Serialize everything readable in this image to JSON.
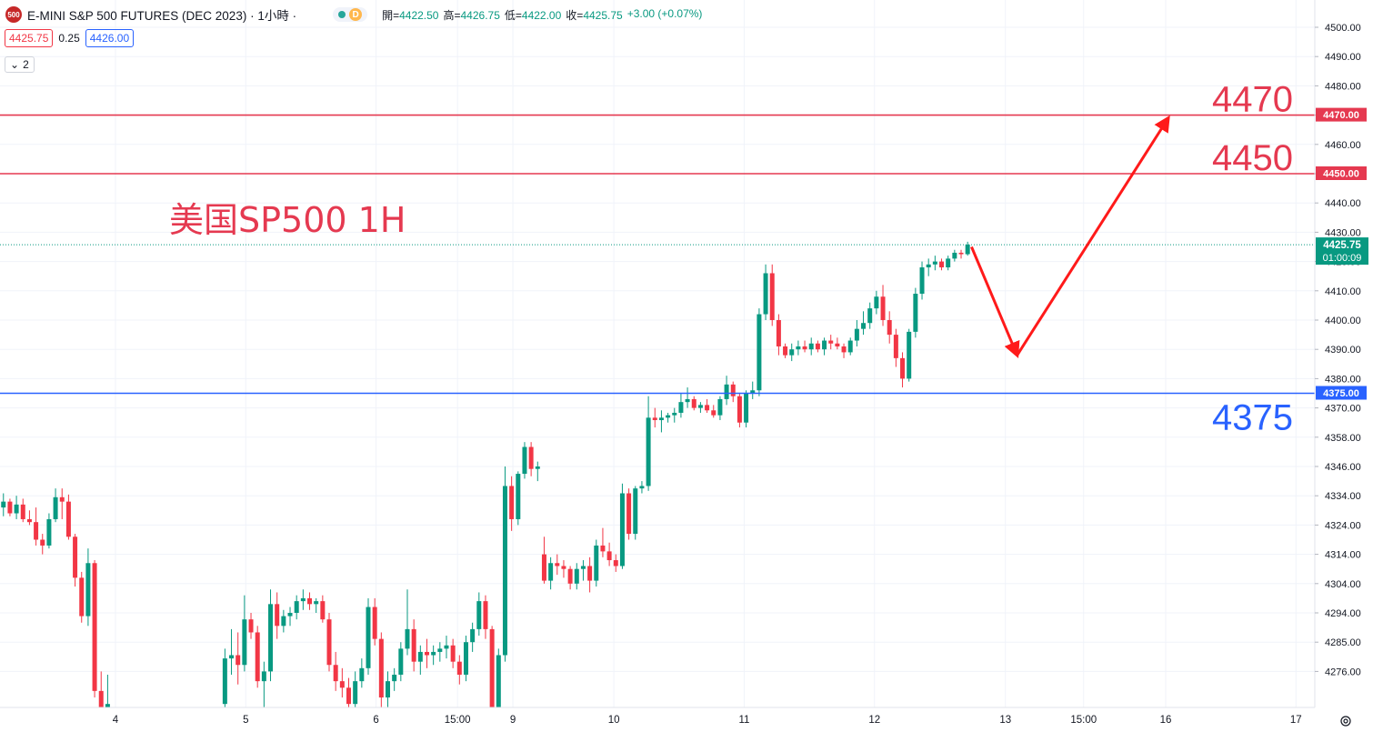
{
  "header": {
    "symbol_badge": "500",
    "title": "E-MINI S&P 500 FUTURES (DEC 2023) · 1小時 ·",
    "status_badge": "D",
    "ohlc": [
      {
        "k": "開=",
        "v": "4422.50"
      },
      {
        "k": "高=",
        "v": "4426.75"
      },
      {
        "k": "低=",
        "v": "4422.00"
      },
      {
        "k": "收=",
        "v": "4425.75"
      },
      {
        "k": "",
        "v": "+3.00 (+0.07%)"
      }
    ]
  },
  "bid_ask": {
    "bid": "4425.75",
    "spread": "0.25",
    "ask": "4426.00"
  },
  "indicators_toggle": {
    "count": "2",
    "icon": "chevron-down-icon"
  },
  "colors": {
    "up": "#089981",
    "down": "#f23645",
    "resistance": "#e53950",
    "support": "#2962ff",
    "arrow": "#ff1a1a"
  },
  "chart_data": {
    "type": "candlestick",
    "title": "美国SP500 1H",
    "y_axis": {
      "ticks": [
        "4500.00",
        "4490.00",
        "4480.00",
        "4470.00",
        "4460.00",
        "4450.00",
        "4440.00",
        "4430.00",
        "4420.00",
        "4410.00",
        "4400.00",
        "4390.00",
        "4380.00",
        "4370.00",
        "4358.00",
        "4346.00",
        "4334.00",
        "4324.00",
        "4314.00",
        "4304.00",
        "4294.00",
        "4285.00",
        "4276.00"
      ]
    },
    "x_axis": {
      "ticks": [
        {
          "label": "4",
          "x": 4
        },
        {
          "label": "5",
          "x": 5
        },
        {
          "label": "6",
          "x": 6
        },
        {
          "label": "15:00",
          "x": 6.625
        },
        {
          "label": "9",
          "x": 7.05
        },
        {
          "label": "10",
          "x": 7.825
        },
        {
          "label": "11",
          "x": 8.825
        },
        {
          "label": "12",
          "x": 9.825
        },
        {
          "label": "13",
          "x": 10.83
        },
        {
          "label": "15:00",
          "x": 11.43
        },
        {
          "label": "16",
          "x": 12.06
        },
        {
          "label": "17",
          "x": 13.06
        }
      ]
    },
    "levels": [
      {
        "value": 4470,
        "label": "4470",
        "tag": "4470.00",
        "color": "#e53950"
      },
      {
        "value": 4450,
        "label": "4450",
        "tag": "4450.00",
        "color": "#e53950"
      },
      {
        "value": 4375,
        "label": "4375",
        "tag": "4375.00",
        "color": "#2962ff"
      }
    ],
    "last_price": {
      "value": 4425.75,
      "tag": "4425.75",
      "countdown": "01:00:09"
    },
    "arrows": [
      {
        "from": [
          10.57,
          4425
        ],
        "to": [
          10.92,
          4388
        ]
      },
      {
        "from": [
          10.92,
          4388
        ],
        "to": [
          12.08,
          4469
        ]
      }
    ],
    "ohlc_series": [
      [
        3.09,
        4314.0,
        4333.5,
        4299.0,
        4331.5
      ],
      [
        3.14,
        4330.0,
        4335.0,
        4327.0,
        4332.0
      ],
      [
        3.19,
        4332.0,
        4333.0,
        4327.0,
        4328.0
      ],
      [
        3.24,
        4328.0,
        4334.0,
        4326.0,
        4331.0
      ],
      [
        3.29,
        4331.0,
        4333.0,
        4325.0,
        4326.0
      ],
      [
        3.34,
        4326.0,
        4329.0,
        4324.0,
        4325.0
      ],
      [
        3.39,
        4325.0,
        4330.0,
        4317.0,
        4319.0
      ],
      [
        3.44,
        4319.0,
        4321.0,
        4314.0,
        4317.0
      ],
      [
        3.49,
        4317.0,
        4328.0,
        4316.0,
        4326.0
      ],
      [
        3.54,
        4326.0,
        4337.0,
        4325.0,
        4333.5
      ],
      [
        3.59,
        4333.5,
        4337.0,
        4326.0,
        4332.0
      ],
      [
        3.64,
        4332.0,
        4334.5,
        4319.0,
        4320.0
      ],
      [
        3.69,
        4320.0,
        4321.0,
        4303.0,
        4306.0
      ],
      [
        3.74,
        4306.0,
        4308.0,
        4291.0,
        4293.0
      ],
      [
        3.79,
        4293.0,
        4316.0,
        4290.0,
        4311.0
      ],
      [
        3.84,
        4311.0,
        4312.0,
        4268.0,
        4270.0
      ],
      [
        3.89,
        4270.0,
        4276.0,
        4260.0,
        4262.0
      ],
      [
        3.94,
        4262.0,
        4275.0,
        4258.0,
        4266.0
      ],
      [
        4.84,
        4266.0,
        4283.0,
        4262.0,
        4280.0
      ],
      [
        4.89,
        4280.0,
        4289.0,
        4275.0,
        4281.0
      ],
      [
        4.94,
        4281.0,
        4288.0,
        4272.0,
        4278.0
      ],
      [
        4.99,
        4278.0,
        4300.0,
        4276.0,
        4292.0
      ],
      [
        5.04,
        4292.0,
        4294.0,
        4286.0,
        4288.0
      ],
      [
        5.09,
        4288.0,
        4290.0,
        4271.0,
        4273.0
      ],
      [
        5.14,
        4273.0,
        4279.0,
        4262.0,
        4276.0
      ],
      [
        5.19,
        4276.0,
        4302.0,
        4273.0,
        4297.0
      ],
      [
        5.24,
        4297.0,
        4301.0,
        4286.0,
        4290.0
      ],
      [
        5.29,
        4290.0,
        4295.0,
        4288.0,
        4293.0
      ],
      [
        5.34,
        4293.0,
        4296.0,
        4290.0,
        4294.0
      ],
      [
        5.39,
        4294.0,
        4300.0,
        4292.0,
        4298.0
      ],
      [
        5.44,
        4298.0,
        4302.0,
        4295.0,
        4299.0
      ],
      [
        5.49,
        4299.0,
        4301.0,
        4295.0,
        4297.0
      ],
      [
        5.54,
        4297.0,
        4299.0,
        4294.0,
        4298.0
      ],
      [
        5.59,
        4298.0,
        4300.0,
        4291.0,
        4292.0
      ],
      [
        5.64,
        4292.0,
        4294.0,
        4276.0,
        4278.0
      ],
      [
        5.69,
        4278.0,
        4282.0,
        4270.0,
        4273.0
      ],
      [
        5.74,
        4273.0,
        4277.0,
        4268.0,
        4271.0
      ],
      [
        5.79,
        4271.0,
        4274.0,
        4263.0,
        4266.0
      ],
      [
        5.84,
        4266.0,
        4276.0,
        4262.0,
        4273.0
      ],
      [
        5.89,
        4273.0,
        4280.0,
        4271.0,
        4277.0
      ],
      [
        5.94,
        4277.0,
        4299.0,
        4275.0,
        4296.0
      ],
      [
        5.99,
        4296.0,
        4299.0,
        4284.0,
        4286.0
      ],
      [
        6.04,
        4286.0,
        4288.0,
        4265.0,
        4268.0
      ],
      [
        6.09,
        4268.0,
        4276.0,
        4262.0,
        4273.0
      ],
      [
        6.14,
        4273.0,
        4277.0,
        4270.0,
        4275.0
      ],
      [
        6.19,
        4275.0,
        4285.0,
        4273.0,
        4283.0
      ],
      [
        6.24,
        4283.0,
        4302.0,
        4281.0,
        4289.0
      ],
      [
        6.29,
        4289.0,
        4292.0,
        4276.0,
        4279.0
      ],
      [
        6.34,
        4279.0,
        4284.0,
        4275.0,
        4282.0
      ],
      [
        6.39,
        4282.0,
        4286.0,
        4277.0,
        4281.0
      ],
      [
        6.44,
        4281.0,
        4284.0,
        4278.0,
        4282.0
      ],
      [
        6.49,
        4282.0,
        4285.0,
        4279.0,
        4283.0
      ],
      [
        6.54,
        4283.0,
        4287.0,
        4280.0,
        4284.0
      ],
      [
        6.59,
        4284.0,
        4286.0,
        4277.0,
        4279.0
      ],
      [
        6.64,
        4279.0,
        4281.0,
        4272.0,
        4275.0
      ],
      [
        6.69,
        4275.0,
        4287.0,
        4273.0,
        4285.0
      ],
      [
        6.74,
        4285.0,
        4291.0,
        4282.0,
        4289.0
      ],
      [
        6.79,
        4289.0,
        4301.0,
        4287.0,
        4298.0
      ],
      [
        6.84,
        4298.0,
        4300.0,
        4286.0,
        4289.0
      ],
      [
        6.89,
        4289.0,
        4290.0,
        4262.0,
        4264.0
      ],
      [
        6.94,
        4264.0,
        4283.0,
        4262.0,
        4281.0
      ],
      [
        6.99,
        4281.0,
        4346.0,
        4279.0,
        4338.0
      ],
      [
        7.04,
        4338.0,
        4342.0,
        4322.0,
        4326.0
      ],
      [
        7.09,
        4326.0,
        4344.0,
        4324.0,
        4343.0
      ],
      [
        7.14,
        4343.0,
        4356.0,
        4341.0,
        4354.0
      ],
      [
        7.19,
        4354.0,
        4356.0,
        4342.0,
        4345.0
      ],
      [
        7.24,
        4345.0,
        4348.0,
        4340.0,
        4346.0
      ],
      [
        7.29,
        4314.0,
        4320.0,
        4304.0,
        4305.0
      ],
      [
        7.34,
        4305.0,
        4313.0,
        4302.0,
        4311.0
      ],
      [
        7.39,
        4311.0,
        4314.0,
        4307.0,
        4310.0
      ],
      [
        7.44,
        4310.0,
        4312.0,
        4306.0,
        4309.0
      ],
      [
        7.49,
        4309.0,
        4310.0,
        4302.0,
        4304.0
      ],
      [
        7.54,
        4304.0,
        4311.0,
        4302.0,
        4309.0
      ],
      [
        7.59,
        4309.0,
        4312.0,
        4305.0,
        4310.0
      ],
      [
        7.64,
        4310.0,
        4313.0,
        4301.0,
        4305.0
      ],
      [
        7.69,
        4305.0,
        4319.0,
        4303.0,
        4317.0
      ],
      [
        7.74,
        4317.0,
        4323.0,
        4313.0,
        4315.0
      ],
      [
        7.79,
        4315.0,
        4318.0,
        4310.0,
        4312.0
      ],
      [
        7.84,
        4312.0,
        4314.0,
        4308.0,
        4310.0
      ],
      [
        7.89,
        4310.0,
        4339.0,
        4309.0,
        4335.0
      ],
      [
        7.94,
        4335.0,
        4337.0,
        4319.0,
        4321.0
      ],
      [
        7.99,
        4321.0,
        4338.0,
        4319.0,
        4337.0
      ],
      [
        8.04,
        4337.0,
        4340.0,
        4335.0,
        4338.0
      ],
      [
        8.09,
        4338.0,
        4374.0,
        4336.0,
        4366.0
      ],
      [
        8.14,
        4366.0,
        4370.0,
        4362.0,
        4365.0
      ],
      [
        8.19,
        4365.0,
        4369.0,
        4360.0,
        4366.0
      ],
      [
        8.24,
        4366.0,
        4368.0,
        4364.0,
        4367.0
      ],
      [
        8.29,
        4367.0,
        4370.0,
        4364.0,
        4368.0
      ],
      [
        8.34,
        4368.0,
        4375.0,
        4366.0,
        4372.0
      ],
      [
        8.39,
        4372.0,
        4377.0,
        4370.0,
        4373.0
      ],
      [
        8.44,
        4373.0,
        4374.0,
        4369.0,
        4370.0
      ],
      [
        8.49,
        4370.0,
        4372.0,
        4368.0,
        4371.0
      ],
      [
        8.54,
        4371.0,
        4373.0,
        4368.0,
        4369.0
      ],
      [
        8.59,
        4369.0,
        4371.0,
        4366.0,
        4367.0
      ],
      [
        8.64,
        4367.0,
        4374.0,
        4365.0,
        4373.0
      ],
      [
        8.69,
        4373.0,
        4381.0,
        4371.0,
        4378.0
      ],
      [
        8.74,
        4378.0,
        4379.0,
        4372.0,
        4374.0
      ],
      [
        8.79,
        4374.0,
        4375.0,
        4362.0,
        4364.0
      ],
      [
        8.84,
        4364.0,
        4376.0,
        4362.0,
        4375.0
      ],
      [
        8.89,
        4375.0,
        4379.0,
        4373.0,
        4376.0
      ],
      [
        8.94,
        4376.0,
        4404.0,
        4374.0,
        4402.0
      ],
      [
        8.99,
        4402.0,
        4419.0,
        4400.0,
        4416.0
      ],
      [
        9.04,
        4416.0,
        4419.0,
        4398.0,
        4400.0
      ],
      [
        9.09,
        4400.0,
        4402.0,
        4388.0,
        4391.0
      ],
      [
        9.14,
        4391.0,
        4392.0,
        4387.0,
        4388.0
      ],
      [
        9.19,
        4388.0,
        4392.0,
        4386.0,
        4390.0
      ],
      [
        9.24,
        4390.0,
        4393.0,
        4388.0,
        4391.0
      ],
      [
        9.29,
        4391.0,
        4393.0,
        4389.0,
        4390.0
      ],
      [
        9.34,
        4390.0,
        4394.0,
        4388.0,
        4392.0
      ],
      [
        9.39,
        4392.0,
        4393.0,
        4389.0,
        4390.0
      ],
      [
        9.44,
        4390.0,
        4394.0,
        4388.0,
        4393.0
      ],
      [
        9.49,
        4393.0,
        4395.0,
        4390.0,
        4392.0
      ],
      [
        9.54,
        4392.0,
        4394.0,
        4390.0,
        4391.0
      ],
      [
        9.59,
        4391.0,
        4392.0,
        4387.0,
        4389.0
      ],
      [
        9.64,
        4389.0,
        4394.0,
        4388.0,
        4393.0
      ],
      [
        9.69,
        4393.0,
        4400.0,
        4391.0,
        4397.0
      ],
      [
        9.74,
        4397.0,
        4403.0,
        4395.0,
        4399.0
      ],
      [
        9.79,
        4399.0,
        4406.0,
        4397.0,
        4404.0
      ],
      [
        9.84,
        4404.0,
        4410.0,
        4402.0,
        4408.0
      ],
      [
        9.89,
        4408.0,
        4412.0,
        4398.0,
        4400.0
      ],
      [
        9.94,
        4400.0,
        4403.0,
        4392.0,
        4395.0
      ],
      [
        9.99,
        4395.0,
        4397.0,
        4384.0,
        4387.0
      ],
      [
        10.04,
        4387.0,
        4389.0,
        4377.0,
        4380.0
      ],
      [
        10.09,
        4380.0,
        4397.0,
        4379.0,
        4396.0
      ],
      [
        10.14,
        4396.0,
        4411.0,
        4394.0,
        4409.0
      ],
      [
        10.19,
        4409.0,
        4420.0,
        4407.0,
        4418.0
      ],
      [
        10.24,
        4418.0,
        4421.0,
        4415.0,
        4419.0
      ],
      [
        10.29,
        4419.0,
        4422.0,
        4417.0,
        4420.0
      ],
      [
        10.34,
        4420.0,
        4421.0,
        4417.0,
        4418.0
      ],
      [
        10.39,
        4418.0,
        4422.0,
        4417.0,
        4421.0
      ],
      [
        10.44,
        4421.0,
        4424.0,
        4420.0,
        4423.0
      ],
      [
        10.49,
        4423.0,
        4424.0,
        4421.0,
        4422.5
      ],
      [
        10.54,
        4422.5,
        4426.75,
        4422.0,
        4425.75
      ]
    ]
  }
}
